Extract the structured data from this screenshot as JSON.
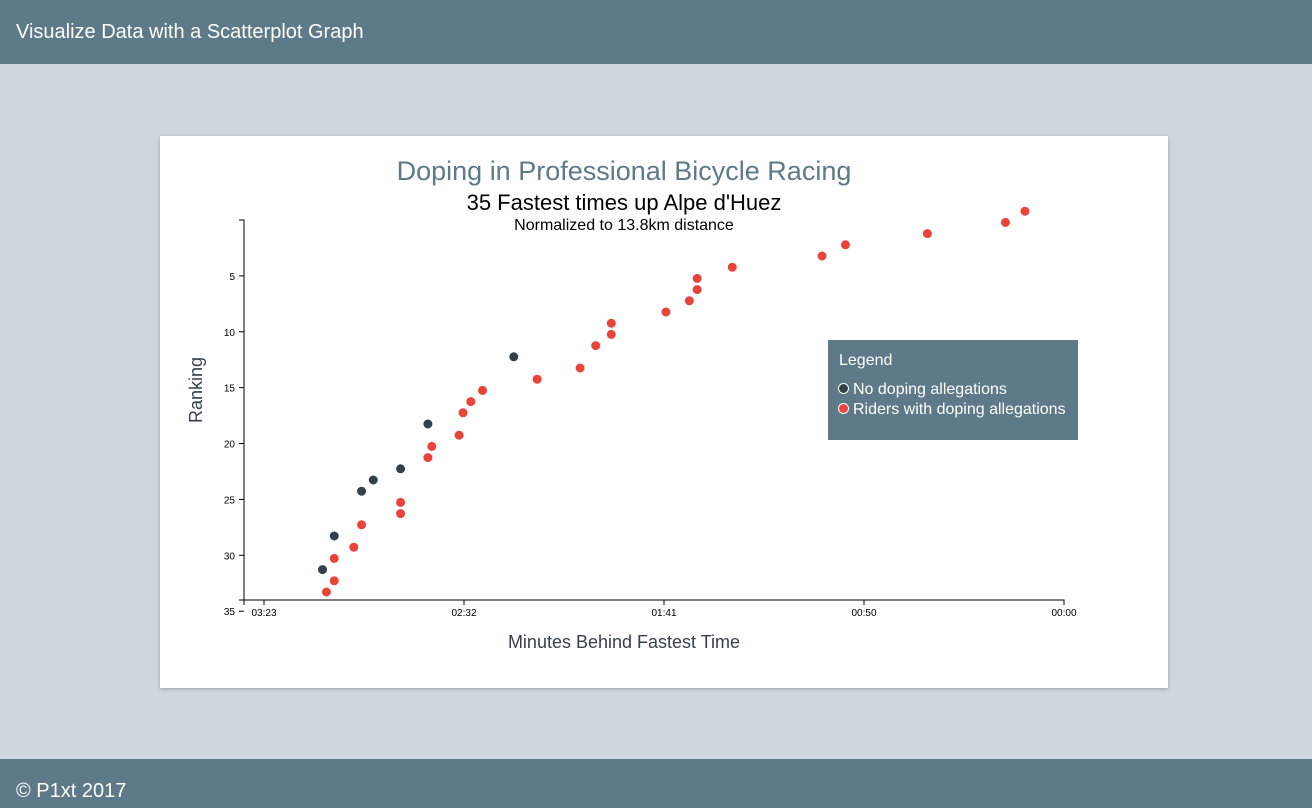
{
  "header": {
    "title": "Visualize Data with a Scatterplot Graph"
  },
  "footer": {
    "copyright": "© P1xt 2017"
  },
  "colors": {
    "bar": "#5e7a88",
    "background": "#d0d7df",
    "no_doping": "#34404a",
    "doping": "#e9433a"
  },
  "chart_data": {
    "type": "scatter",
    "title": "Doping in Professional Bicycle Racing",
    "subtitle": "35 Fastest times up Alpe d'Huez",
    "note": "Normalized to 13.8km distance",
    "xlabel": "Minutes Behind Fastest Time",
    "ylabel": "Ranking",
    "x_ticks": [
      "03:23",
      "02:32",
      "01:41",
      "00:50",
      "00:00"
    ],
    "y_ticks": [
      "5",
      "10",
      "15",
      "20",
      "25",
      "30",
      "35"
    ],
    "xlim": [
      205,
      0
    ],
    "ylim": [
      1,
      35
    ],
    "grid": false,
    "legend": {
      "title": "Legend",
      "position": "right",
      "items": [
        {
          "label": "No doping allegations",
          "color": "#34404a"
        },
        {
          "label": "Riders with doping allegations",
          "color": "#e9433a"
        }
      ]
    },
    "series": [
      {
        "name": "No doping allegations",
        "points": [
          {
            "x": 141,
            "y": 14
          },
          {
            "x": 163,
            "y": 20
          },
          {
            "x": 170,
            "y": 24
          },
          {
            "x": 177,
            "y": 25
          },
          {
            "x": 180,
            "y": 26
          },
          {
            "x": 187,
            "y": 30
          },
          {
            "x": 190,
            "y": 33
          }
        ]
      },
      {
        "name": "Riders with doping allegations",
        "points": [
          {
            "x": 10,
            "y": 1
          },
          {
            "x": 15,
            "y": 2
          },
          {
            "x": 35,
            "y": 3
          },
          {
            "x": 56,
            "y": 4
          },
          {
            "x": 62,
            "y": 5
          },
          {
            "x": 85,
            "y": 6
          },
          {
            "x": 94,
            "y": 7
          },
          {
            "x": 94,
            "y": 8
          },
          {
            "x": 96,
            "y": 9
          },
          {
            "x": 102,
            "y": 10
          },
          {
            "x": 116,
            "y": 11
          },
          {
            "x": 116,
            "y": 12
          },
          {
            "x": 120,
            "y": 13
          },
          {
            "x": 124,
            "y": 15
          },
          {
            "x": 135,
            "y": 16
          },
          {
            "x": 149,
            "y": 17
          },
          {
            "x": 152,
            "y": 18
          },
          {
            "x": 154,
            "y": 19
          },
          {
            "x": 155,
            "y": 21
          },
          {
            "x": 162,
            "y": 22
          },
          {
            "x": 163,
            "y": 23
          },
          {
            "x": 170,
            "y": 27
          },
          {
            "x": 170,
            "y": 28
          },
          {
            "x": 180,
            "y": 29
          },
          {
            "x": 182,
            "y": 31
          },
          {
            "x": 187,
            "y": 32
          },
          {
            "x": 187,
            "y": 34
          },
          {
            "x": 189,
            "y": 35
          }
        ]
      }
    ]
  }
}
